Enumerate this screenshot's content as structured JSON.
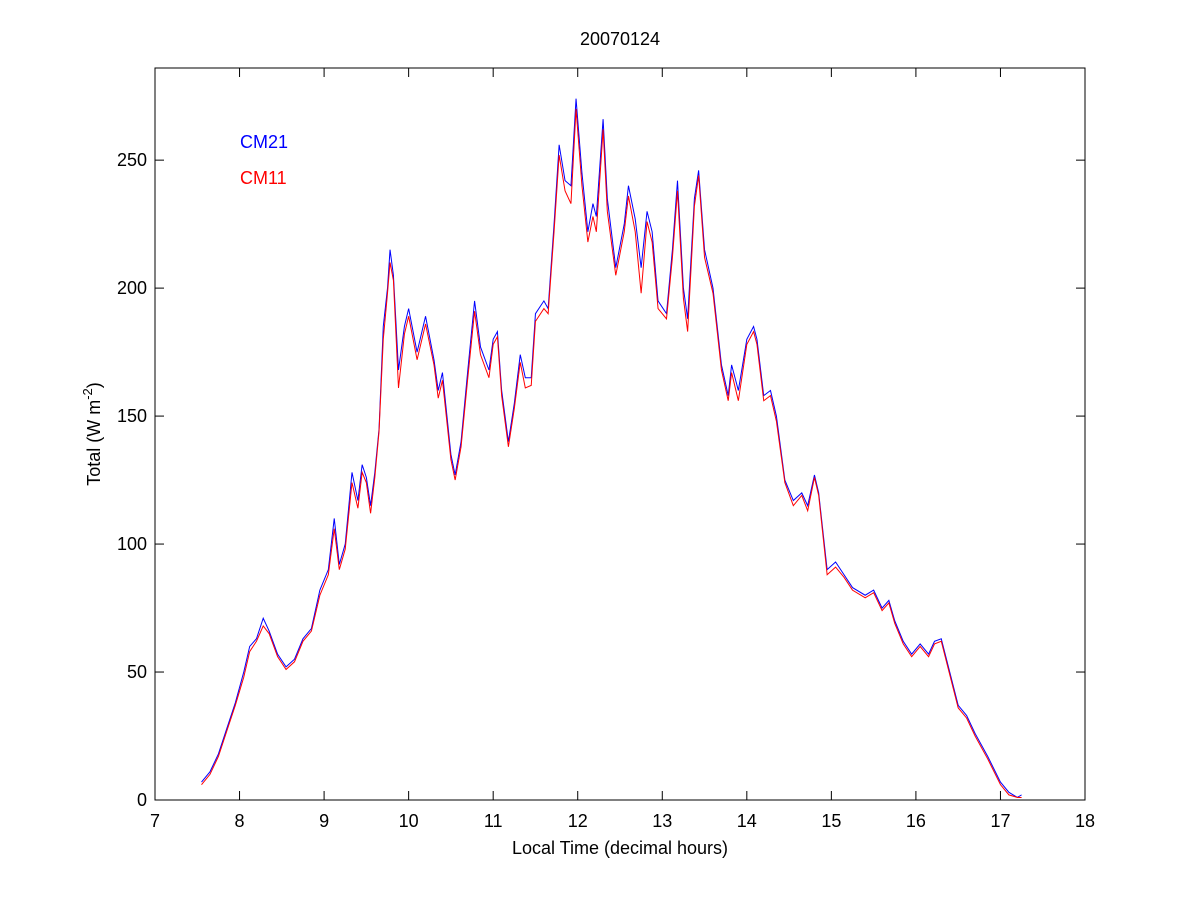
{
  "chart_data": {
    "type": "line",
    "title": "20070124",
    "x_label": "Local Time (decimal hours)",
    "y_label": {
      "text": "Total (W m",
      "superscript": "-2",
      "suffix": ")"
    },
    "legend": "upper left",
    "xlim": [
      7,
      18
    ],
    "xticks": [
      7,
      8,
      9,
      10,
      11,
      12,
      13,
      14,
      15,
      16,
      17,
      18
    ],
    "ylim": [
      0,
      286
    ],
    "yticks": [
      0,
      50,
      100,
      150,
      200,
      250
    ],
    "x": [
      7.55,
      7.65,
      7.75,
      7.85,
      7.95,
      8.05,
      8.12,
      8.2,
      8.28,
      8.35,
      8.45,
      8.55,
      8.65,
      8.75,
      8.85,
      8.95,
      9.05,
      9.12,
      9.18,
      9.25,
      9.33,
      9.4,
      9.45,
      9.5,
      9.55,
      9.6,
      9.65,
      9.7,
      9.75,
      9.78,
      9.82,
      9.88,
      9.95,
      10.0,
      10.1,
      10.2,
      10.3,
      10.35,
      10.4,
      10.5,
      10.55,
      10.62,
      10.7,
      10.78,
      10.85,
      10.95,
      11.0,
      11.05,
      11.1,
      11.18,
      11.25,
      11.32,
      11.38,
      11.45,
      11.5,
      11.6,
      11.65,
      11.72,
      11.78,
      11.85,
      11.92,
      11.98,
      12.05,
      12.12,
      12.18,
      12.22,
      12.3,
      12.35,
      12.45,
      12.55,
      12.6,
      12.68,
      12.75,
      12.82,
      12.88,
      12.95,
      13.05,
      13.12,
      13.18,
      13.25,
      13.3,
      13.38,
      13.43,
      13.5,
      13.6,
      13.7,
      13.78,
      13.82,
      13.9,
      14.0,
      14.08,
      14.12,
      14.2,
      14.28,
      14.35,
      14.45,
      14.55,
      14.65,
      14.72,
      14.8,
      14.85,
      14.95,
      15.05,
      15.15,
      15.25,
      15.4,
      15.5,
      15.6,
      15.68,
      15.75,
      15.85,
      15.95,
      16.05,
      16.15,
      16.22,
      16.3,
      16.4,
      16.5,
      16.6,
      16.7,
      16.85,
      17.0,
      17.1,
      17.2,
      17.25
    ],
    "series": [
      {
        "name": "CM21",
        "color": "#0000ff",
        "values": [
          7,
          11,
          18,
          28,
          38,
          50,
          60,
          63,
          71,
          66,
          57,
          52,
          55,
          63,
          67,
          82,
          90,
          110,
          92,
          100,
          128,
          117,
          131,
          126,
          115,
          128,
          145,
          185,
          200,
          215,
          205,
          168,
          185,
          192,
          175,
          189,
          172,
          160,
          167,
          135,
          127,
          140,
          168,
          195,
          177,
          168,
          180,
          183,
          160,
          140,
          155,
          174,
          165,
          165,
          190,
          195,
          192,
          225,
          256,
          242,
          240,
          274,
          245,
          222,
          233,
          228,
          266,
          235,
          208,
          225,
          240,
          227,
          208,
          230,
          222,
          195,
          190,
          215,
          242,
          200,
          188,
          235,
          246,
          215,
          200,
          170,
          158,
          170,
          160,
          180,
          185,
          180,
          158,
          160,
          150,
          125,
          117,
          120,
          115,
          127,
          120,
          90,
          93,
          88,
          83,
          80,
          82,
          75,
          78,
          70,
          62,
          57,
          61,
          57,
          62,
          63,
          50,
          37,
          33,
          26,
          17,
          7,
          3,
          1,
          2
        ]
      },
      {
        "name": "CM11",
        "color": "#ff0000",
        "values": [
          6,
          10,
          17,
          27,
          37,
          48,
          58,
          62,
          68,
          65,
          56,
          51,
          54,
          62,
          66,
          80,
          88,
          106,
          90,
          98,
          124,
          114,
          128,
          124,
          112,
          126,
          144,
          180,
          198,
          210,
          203,
          161,
          182,
          189,
          172,
          186,
          170,
          157,
          164,
          133,
          125,
          138,
          165,
          191,
          174,
          165,
          178,
          181,
          158,
          138,
          153,
          171,
          161,
          162,
          187,
          192,
          190,
          222,
          252,
          238,
          233,
          270,
          240,
          218,
          228,
          222,
          262,
          230,
          205,
          222,
          236,
          222,
          198,
          226,
          218,
          192,
          188,
          212,
          238,
          196,
          183,
          232,
          244,
          212,
          198,
          168,
          156,
          167,
          156,
          178,
          183,
          178,
          156,
          158,
          148,
          124,
          115,
          119,
          113,
          126,
          119,
          88,
          91,
          87,
          82,
          79,
          81,
          74,
          77,
          69,
          61,
          56,
          60,
          56,
          61,
          62,
          49,
          36,
          32,
          25,
          16,
          6,
          2,
          1,
          1
        ]
      }
    ]
  }
}
